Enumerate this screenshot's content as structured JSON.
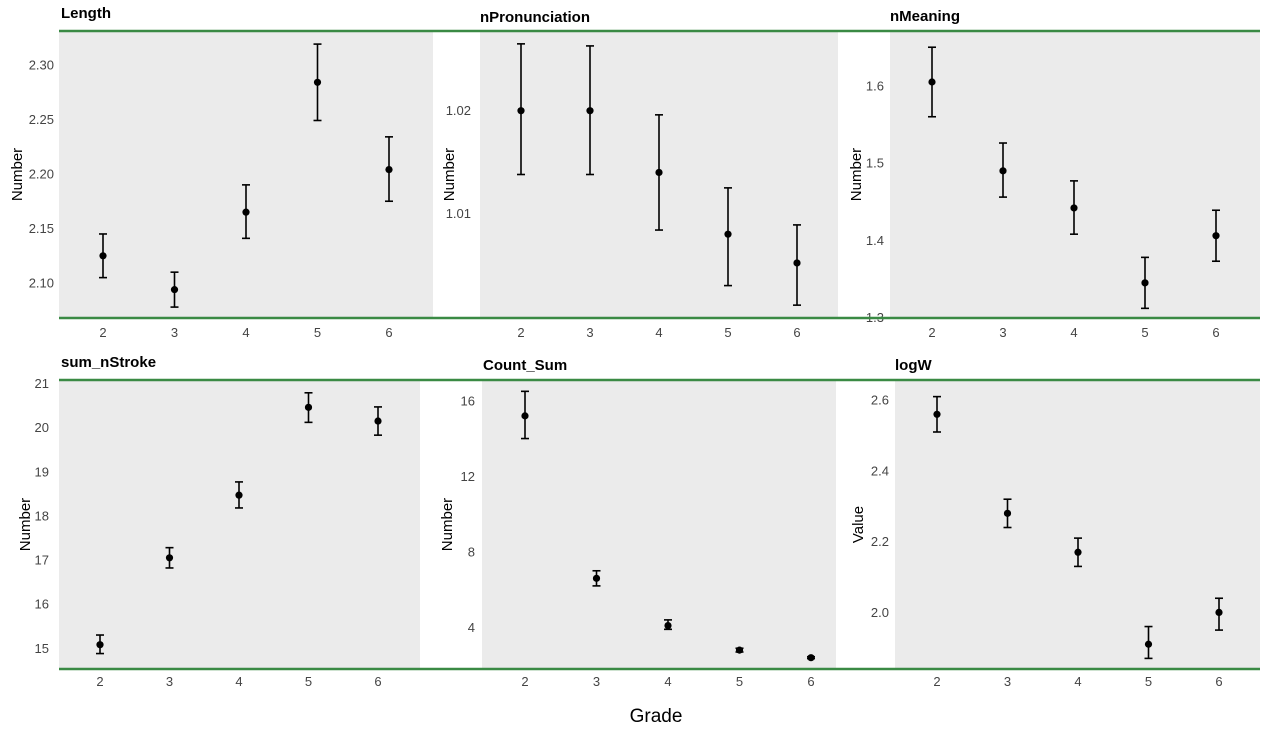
{
  "figure": {
    "xlabel": "Grade"
  },
  "colors": {
    "panel_bg": "#ebebeb",
    "rule": "#3a8a44",
    "point": "#000000",
    "tick_text": "#444444"
  },
  "chart_data": [
    {
      "type": "scatter",
      "title": "Length",
      "xlabel": "",
      "ylabel": "Number",
      "categories": [
        "2",
        "3",
        "4",
        "5",
        "6"
      ],
      "values": [
        2.125,
        2.094,
        2.165,
        2.284,
        2.204
      ],
      "err_low": [
        2.105,
        2.078,
        2.141,
        2.249,
        2.175
      ],
      "err_high": [
        2.145,
        2.11,
        2.19,
        2.319,
        2.234
      ],
      "ylim": [
        2.068,
        2.331
      ],
      "yticks": [
        2.1,
        2.15,
        2.2,
        2.25,
        2.3
      ],
      "ytick_labels": [
        "2.10",
        "2.15",
        "2.20",
        "2.25",
        "2.30"
      ]
    },
    {
      "type": "scatter",
      "title": "nPronunciation",
      "xlabel": "",
      "ylabel": "Number",
      "categories": [
        "2",
        "3",
        "4",
        "5",
        "6"
      ],
      "values": [
        1.02,
        1.02,
        1.014,
        1.008,
        1.0052
      ],
      "err_low": [
        1.0138,
        1.0138,
        1.0084,
        1.003,
        1.0011
      ],
      "err_high": [
        1.0265,
        1.0263,
        1.0196,
        1.0125,
        1.0089
      ],
      "ylim": [
        0.99985,
        1.02775
      ],
      "yticks": [
        1.01,
        1.02
      ],
      "ytick_labels": [
        "1.01",
        "1.02"
      ]
    },
    {
      "type": "scatter",
      "title": "nMeaning",
      "xlabel": "",
      "ylabel": "Number",
      "categories": [
        "2",
        "3",
        "4",
        "5",
        "6"
      ],
      "values": [
        1.605,
        1.49,
        1.442,
        1.345,
        1.406
      ],
      "err_low": [
        1.56,
        1.456,
        1.408,
        1.312,
        1.373
      ],
      "err_high": [
        1.65,
        1.526,
        1.477,
        1.378,
        1.439
      ],
      "ylim": [
        1.2995,
        1.671
      ],
      "yticks": [
        1.3,
        1.4,
        1.5,
        1.6
      ],
      "ytick_labels": [
        "1.3",
        "1.4",
        "1.5",
        "1.6"
      ]
    },
    {
      "type": "scatter",
      "title": "sum_nStroke",
      "xlabel": "",
      "ylabel": "Number",
      "categories": [
        "2",
        "3",
        "4",
        "5",
        "6"
      ],
      "values": [
        15.08,
        17.05,
        18.47,
        20.46,
        20.15
      ],
      "err_low": [
        14.88,
        16.82,
        18.18,
        20.12,
        19.83
      ],
      "err_high": [
        15.3,
        17.28,
        18.77,
        20.79,
        20.47
      ],
      "ylim": [
        14.53,
        21.08
      ],
      "yticks": [
        15,
        16,
        17,
        18,
        19,
        20,
        21
      ],
      "ytick_labels": [
        "15",
        "16",
        "17",
        "18",
        "19",
        "20",
        "21"
      ]
    },
    {
      "type": "scatter",
      "title": "Count_Sum",
      "xlabel": "",
      "ylabel": "Number",
      "categories": [
        "2",
        "3",
        "4",
        "5",
        "6"
      ],
      "values": [
        15.2,
        6.6,
        4.1,
        2.8,
        2.4
      ],
      "err_low": [
        14.0,
        6.2,
        3.9,
        2.7,
        2.35
      ],
      "err_high": [
        16.5,
        7.0,
        4.4,
        2.9,
        2.45
      ],
      "ylim": [
        1.8,
        17.1
      ],
      "yticks": [
        4,
        8,
        12,
        16
      ],
      "ytick_labels": [
        "4",
        "8",
        "12",
        "16"
      ]
    },
    {
      "type": "scatter",
      "title": "logW",
      "xlabel": "",
      "ylabel": "Value",
      "categories": [
        "2",
        "3",
        "4",
        "5",
        "6"
      ],
      "values": [
        2.56,
        2.28,
        2.17,
        1.91,
        2.0
      ],
      "err_low": [
        2.51,
        2.24,
        2.13,
        1.87,
        1.95
      ],
      "err_high": [
        2.61,
        2.32,
        2.21,
        1.96,
        2.04
      ],
      "ylim": [
        1.84,
        2.657
      ],
      "yticks": [
        2.0,
        2.2,
        2.4,
        2.6
      ],
      "ytick_labels": [
        "2.0",
        "2.2",
        "2.4",
        "2.6"
      ]
    }
  ]
}
